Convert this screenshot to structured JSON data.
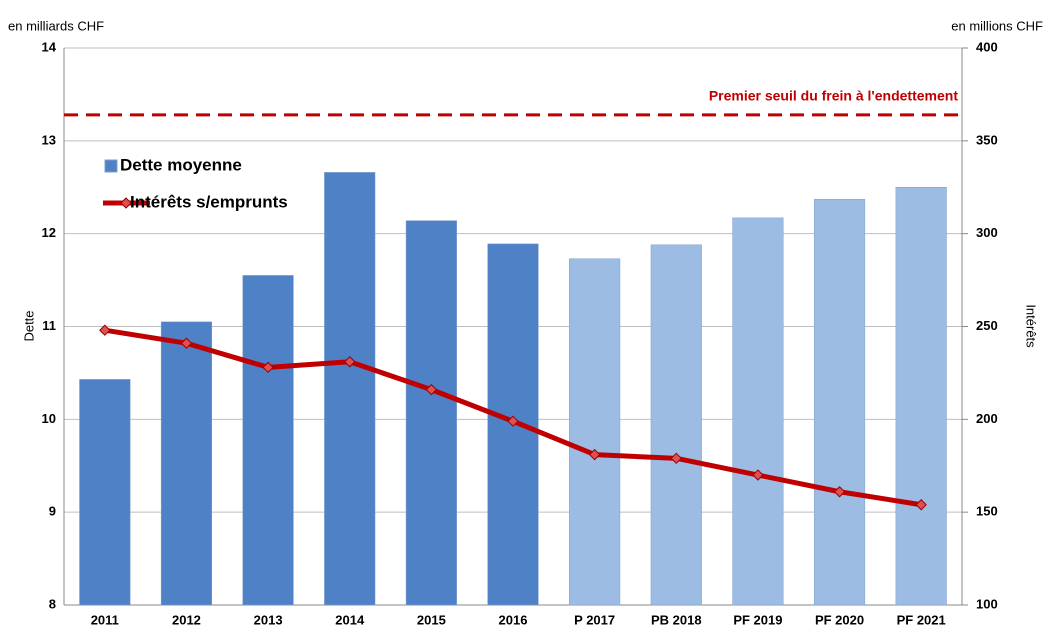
{
  "chart_data": {
    "type": "bar",
    "ylabel": "Dette",
    "y2label": "Intérêts",
    "yunit": "en milliards CHF",
    "y2unit": "en millions CHF",
    "categories": [
      "2011",
      "2012",
      "2013",
      "2014",
      "2015",
      "2016",
      "P 2017",
      "PB 2018",
      "PF 2019",
      "PF 2020",
      "PF 2021"
    ],
    "series": [
      {
        "name": "Dette moyenne",
        "type": "bar",
        "color": "#4f81c7",
        "colors": [
          "#4f81c7",
          "#4f81c7",
          "#4f81c7",
          "#4f81c7",
          "#4f81c7",
          "#4f81c7",
          "#9dbce3",
          "#9dbce3",
          "#9dbce3",
          "#9dbce3",
          "#9dbce3"
        ],
        "values": [
          10.43,
          11.05,
          11.55,
          12.66,
          12.14,
          11.89,
          11.73,
          11.88,
          12.17,
          12.37,
          12.5
        ]
      },
      {
        "name": "Intérêts s/emprunts",
        "type": "line",
        "axis": "y2",
        "color": "#c00000",
        "values": [
          248,
          241,
          228,
          231,
          216,
          199,
          181,
          179,
          170,
          161,
          154
        ]
      }
    ],
    "ylim": [
      8,
      14
    ],
    "yticks": [
      8,
      9,
      10,
      11,
      12,
      13,
      14
    ],
    "y2lim": [
      100,
      400
    ],
    "y2ticks": [
      100,
      150,
      200,
      250,
      300,
      350,
      400
    ],
    "grid": true,
    "threshold": {
      "label": "Premier seuil du frein à l'endettement",
      "value": 13.28,
      "color": "#c00000"
    }
  }
}
